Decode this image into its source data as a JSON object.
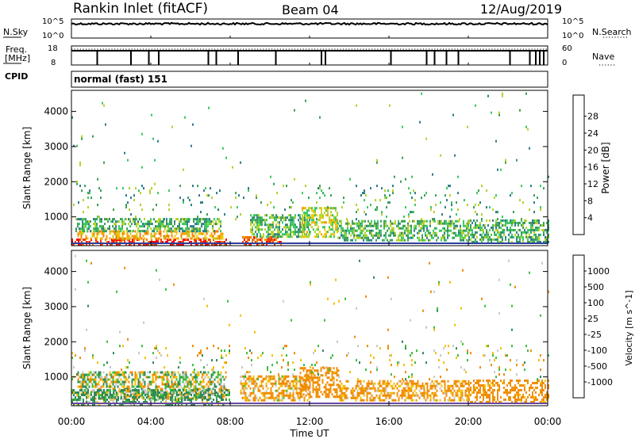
{
  "header": {
    "station": "Rankin Inlet (fitACF)",
    "beam": "Beam 04",
    "date": "12/Aug/2019"
  },
  "side_labels": {
    "nsky": "N.Sky",
    "freq_line1": "Freq.",
    "freq_line2": "[MHz]",
    "cpid": "CPID",
    "nsearch": "N.Search",
    "nave": "Nave"
  },
  "cpid_text": "normal (fast) 151",
  "xlabel": "Time UT",
  "chart_data": [
    {
      "type": "line",
      "name": "noise-panel",
      "left_axis": {
        "label": "N.Sky",
        "ticks": [
          "10^5",
          "10^0"
        ]
      },
      "right_axis": {
        "label": "N.Search",
        "ticks": [
          "10^5",
          "10^0"
        ]
      },
      "level": 0.75
    },
    {
      "type": "line",
      "name": "freq-nave-panel",
      "left_axis": {
        "label": "Freq. [MHz]",
        "ticks": [
          "18",
          "8"
        ]
      },
      "right_axis": {
        "label": "Nave",
        "ticks": [
          "60",
          "0"
        ]
      },
      "level": 0.75,
      "dips_hours": [
        1.3,
        3.0,
        3.9,
        4.4,
        6.9,
        7.3,
        8.4,
        10.3,
        12.6,
        12.8,
        16.1,
        17.9,
        18.3,
        18.9,
        19.5,
        22.1,
        23.1,
        23.4,
        23.6,
        23.8
      ]
    },
    {
      "type": "heatmap",
      "title": "",
      "xlabel": "Time UT",
      "ylabel": "Slant Range [km]",
      "x_range_hours": [
        0,
        24
      ],
      "x_ticks": [
        "00:00",
        "04:00",
        "08:00",
        "12:00",
        "16:00",
        "20:00",
        "00:00"
      ],
      "y_range_km": [
        180,
        4600
      ],
      "y_ticks": [
        1000,
        2000,
        3000,
        4000
      ],
      "colorbar": {
        "label": "Power [dB]",
        "ticks": [
          "4",
          "8",
          "12",
          "16",
          "20",
          "24",
          "28"
        ],
        "colors": [
          "#0000ff",
          "#1e4ba0",
          "#2f7d8a",
          "#3c9e58",
          "#3cc864",
          "#b6d22a",
          "#f0c800",
          "#f5a000",
          "#f07800",
          "#e84010",
          "#ff0000"
        ]
      },
      "regions": [
        {
          "t0": 0.0,
          "t1": 7.8,
          "r0": 180,
          "r1": 350,
          "value": 30
        },
        {
          "t0": 0.3,
          "t1": 7.6,
          "r0": 350,
          "r1": 560,
          "value": 22
        },
        {
          "t0": 0.2,
          "t1": 7.5,
          "r0": 560,
          "r1": 900,
          "value": 12
        },
        {
          "t0": 8.6,
          "t1": 10.6,
          "r0": 180,
          "r1": 400,
          "value": 28
        },
        {
          "t0": 9.0,
          "t1": 12.0,
          "r0": 400,
          "r1": 1050,
          "value": 13
        },
        {
          "t0": 11.6,
          "t1": 13.4,
          "r0": 400,
          "r1": 1250,
          "value": 17
        },
        {
          "t0": 13.4,
          "t1": 20.0,
          "r0": 300,
          "r1": 900,
          "value": 13
        },
        {
          "t0": 20.0,
          "t1": 24.0,
          "r0": 250,
          "r1": 900,
          "value": 12
        }
      ],
      "speckle_ranges": [
        {
          "t0": 0.0,
          "t1": 24.0,
          "r0": 900,
          "r1": 1900,
          "density": 0.05
        },
        {
          "t0": 0.0,
          "t1": 24.0,
          "r0": 1900,
          "r1": 4500,
          "density": 0.006
        }
      ]
    },
    {
      "type": "heatmap",
      "title": "",
      "xlabel": "Time UT",
      "ylabel": "Slant Range [km]",
      "x_range_hours": [
        0,
        24
      ],
      "x_ticks": [
        "00:00",
        "04:00",
        "08:00",
        "12:00",
        "16:00",
        "20:00",
        "00:00"
      ],
      "y_range_km": [
        180,
        4600
      ],
      "y_ticks": [
        1000,
        2000,
        3000,
        4000
      ],
      "colorbar": {
        "label": "Velocity [m s^-1]",
        "ticks": [
          "1000",
          "500",
          "100",
          "25",
          "-25",
          "-100",
          "-500",
          "-1000"
        ],
        "colors": [
          "#1e1ed2",
          "#2a4fa0",
          "#2f8a5a",
          "#3cbe3c",
          "#c8c8c8",
          "#f5c000",
          "#f08c00",
          "#f05000",
          "#ff0000"
        ]
      },
      "regions": [
        {
          "t0": 0.3,
          "t1": 7.8,
          "r0": 350,
          "r1": 1100,
          "value": 0
        },
        {
          "t0": 0.0,
          "t1": 8.0,
          "r0": 180,
          "r1": 600,
          "value": 150
        },
        {
          "t0": 8.5,
          "t1": 12.0,
          "r0": 300,
          "r1": 1000,
          "value": -150
        },
        {
          "t0": 11.5,
          "t1": 13.5,
          "r0": 400,
          "r1": 1250,
          "value": -300
        },
        {
          "t0": 13.5,
          "t1": 20.0,
          "r0": 300,
          "r1": 900,
          "value": -200
        },
        {
          "t0": 20.0,
          "t1": 24.0,
          "r0": 250,
          "r1": 900,
          "value": -250
        }
      ],
      "speckle_ranges": [
        {
          "t0": 0.0,
          "t1": 24.0,
          "r0": 900,
          "r1": 1900,
          "density": 0.05
        },
        {
          "t0": 0.0,
          "t1": 24.0,
          "r0": 1900,
          "r1": 4500,
          "density": 0.006
        }
      ]
    }
  ]
}
